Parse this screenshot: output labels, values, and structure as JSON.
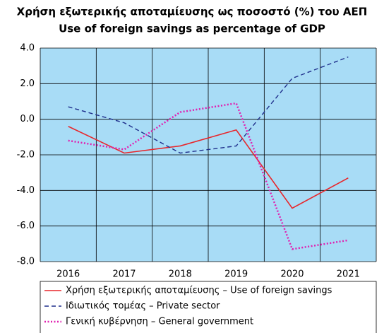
{
  "chart_data": {
    "type": "line",
    "title": [
      "Χρήση εξωτερικής αποταμίευσης ως ποσοστό (%) του ΑΕΠ",
      "Use of foreign savings as percentage of GDP"
    ],
    "categories": [
      "2016",
      "2017",
      "2018",
      "2019",
      "2020",
      "2021"
    ],
    "series": [
      {
        "name": "Χρήση εξωτερικής αποταμίευσης – Use of foreign savings",
        "color": "#e8262b",
        "dash": "solid",
        "values": [
          -0.4,
          -1.9,
          -1.5,
          -0.6,
          -5.0,
          -3.3
        ]
      },
      {
        "name": "Ιδιωτικός τομέας – Private sector",
        "color": "#1f2f8c",
        "dash": "dashed",
        "values": [
          0.7,
          -0.2,
          -1.9,
          -1.5,
          2.3,
          3.5
        ]
      },
      {
        "name": "Γενική κυβέρνηση – General government",
        "color": "#e020b0",
        "dash": "dotted",
        "values": [
          -1.2,
          -1.7,
          0.4,
          0.9,
          -7.3,
          -6.8
        ]
      }
    ],
    "ylim": [
      -8,
      4
    ],
    "yticks": [
      {
        "value": 4,
        "label": "4.0"
      },
      {
        "value": 2,
        "label": "2.0"
      },
      {
        "value": 0,
        "label": "0.0"
      },
      {
        "value": -2,
        "label": "-2.0"
      },
      {
        "value": -4,
        "label": "-4.0"
      },
      {
        "value": -6,
        "label": "-6.0"
      },
      {
        "value": -8,
        "label": "-8.0"
      }
    ],
    "grid": true,
    "background": "#a8dcf6"
  }
}
